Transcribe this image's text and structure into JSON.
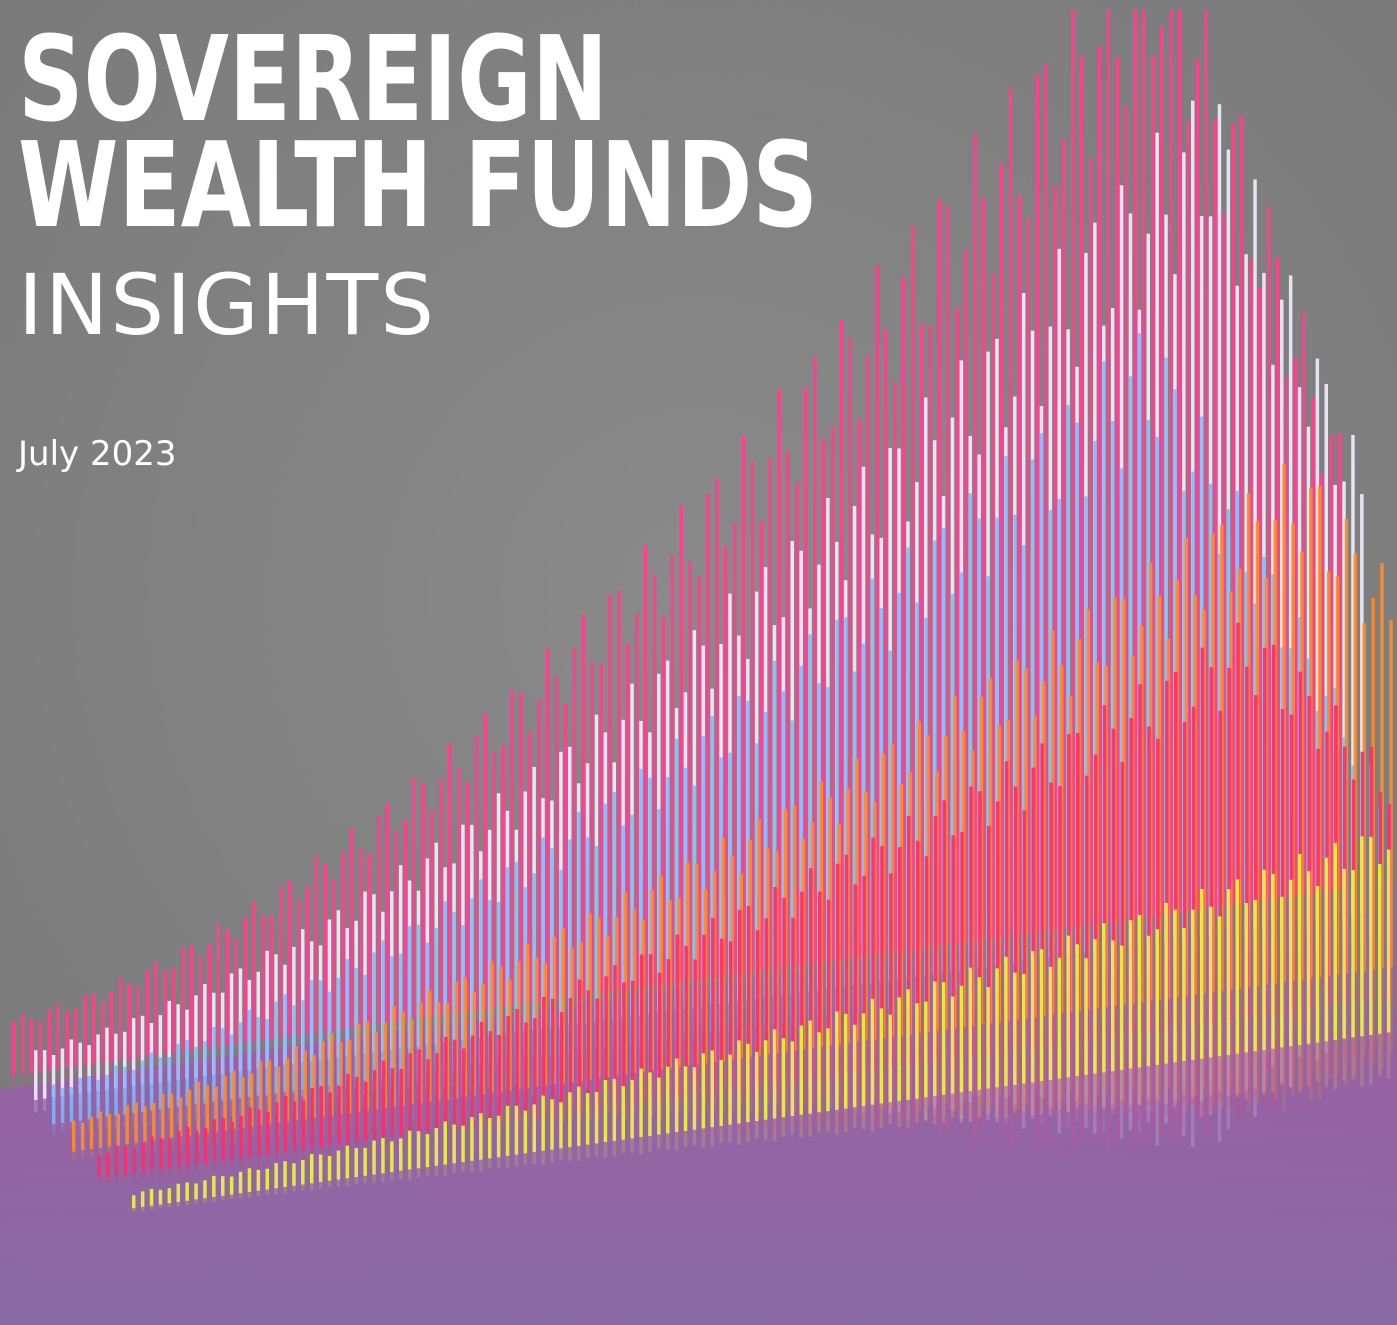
{
  "header": {
    "title_lines": [
      "SOVEREIGN",
      "WEALTH FUNDS"
    ],
    "subtitle": "INSIGHTS",
    "date": "July 2023"
  }
}
